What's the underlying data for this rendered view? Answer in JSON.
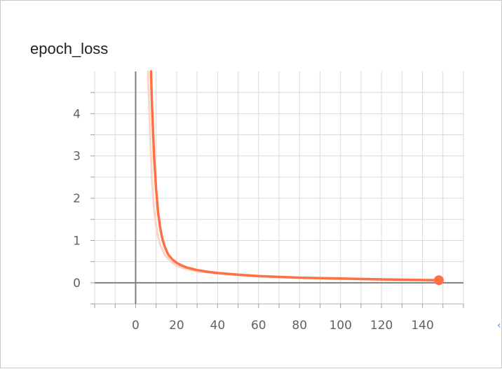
{
  "card": {
    "title": "epoch_loss"
  },
  "chart_data": {
    "type": "line",
    "title": "epoch_loss",
    "xlabel": "",
    "ylabel": "",
    "xlim": [
      -20,
      160
    ],
    "ylim": [
      -0.5,
      5.0
    ],
    "x_ticks": [
      0,
      20,
      40,
      60,
      80,
      100,
      120,
      140
    ],
    "y_ticks": [
      0,
      1,
      2,
      3,
      4
    ],
    "grid": true,
    "colors": {
      "smoothed": "#ff7043",
      "raw": "#fbd5c7",
      "grid": "#d9d9d9",
      "axis": "#808080"
    },
    "series": [
      {
        "role": "raw",
        "x": [
          6,
          7,
          8,
          9,
          10,
          11,
          12,
          13,
          14,
          16,
          18,
          20,
          24,
          30,
          40,
          50,
          60,
          80,
          100,
          120,
          140,
          148
        ],
        "values": [
          5.0,
          3.6,
          2.4,
          1.75,
          1.35,
          1.08,
          0.9,
          0.78,
          0.68,
          0.56,
          0.47,
          0.4,
          0.33,
          0.27,
          0.22,
          0.18,
          0.15,
          0.12,
          0.09,
          0.07,
          0.06,
          0.05
        ]
      },
      {
        "role": "smoothed",
        "x": [
          7.5,
          8,
          9,
          10,
          11,
          12,
          13,
          14,
          15,
          16,
          18,
          20,
          22,
          25,
          30,
          35,
          40,
          50,
          60,
          80,
          100,
          120,
          140,
          148
        ],
        "values": [
          5.0,
          4.2,
          3.0,
          2.2,
          1.65,
          1.3,
          1.05,
          0.88,
          0.76,
          0.66,
          0.55,
          0.47,
          0.42,
          0.36,
          0.3,
          0.26,
          0.23,
          0.19,
          0.16,
          0.12,
          0.1,
          0.08,
          0.065,
          0.06
        ]
      }
    ],
    "last_point": {
      "x": 148,
      "y": 0.06
    }
  }
}
